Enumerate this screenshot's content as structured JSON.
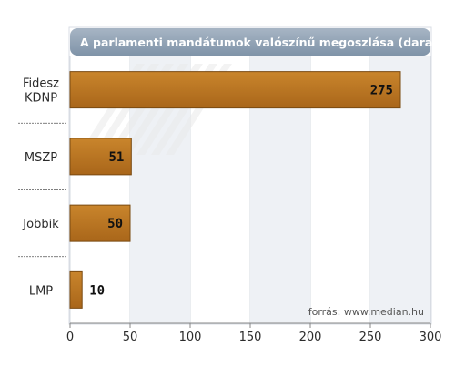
{
  "chart_data": {
    "type": "bar",
    "orientation": "horizontal",
    "title": "A parlamenti mandátumok valószínű megoszlása (darab)",
    "categories": [
      [
        "Fidesz",
        "KDNP"
      ],
      [
        "MSZP"
      ],
      [
        "Jobbik"
      ],
      [
        "LMP"
      ]
    ],
    "values": [
      275,
      51,
      50,
      10
    ],
    "value_labels": [
      "275",
      "51",
      "50",
      "10"
    ],
    "xlim": [
      0,
      300
    ],
    "xticks": [
      "0",
      "50",
      "100",
      "150",
      "200",
      "250",
      "300"
    ],
    "grid": true,
    "source": "forrás: www.median.hu",
    "colors": {
      "bar": "#b8741e",
      "bar_stroke": "#7a4a10",
      "title_bg": "#8da0b4",
      "plot_bg": "#ffffff",
      "band_bg": "#eef1f5",
      "grid": "#d6dbe2"
    }
  }
}
